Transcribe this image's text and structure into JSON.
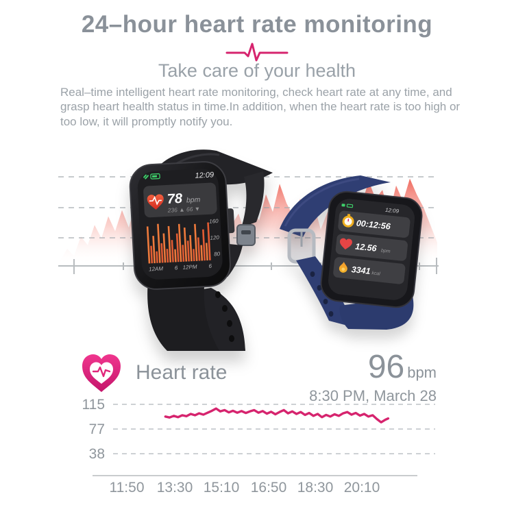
{
  "header": {
    "title": "24–hour heart rate monitoring",
    "subtitle": "Take care of your health",
    "description": "Real–time intelligent heart rate monitoring, check heart rate at any time, and grasp heart health status in time.In addition, when the heart rate is too high or too low, it will promptly notify you.",
    "accent_color": "#d6246e",
    "title_color": "#8a9199"
  },
  "icons": {
    "divider": "ecg-pulse-icon",
    "section": "heart-rate-badge-icon",
    "watch_status": [
      "steps-icon",
      "battery-icon"
    ],
    "watch_blue_rows": [
      "stopwatch-icon",
      "heart-icon",
      "flame-icon"
    ]
  },
  "scene": {
    "background_wave": {
      "color_top": "#ef6458",
      "heights": [
        0.05,
        0.18,
        0.1,
        0.32,
        0.22,
        0.45,
        0.3,
        0.55,
        0.38,
        0.62,
        0.42,
        0.7,
        0.52,
        0.78,
        0.58,
        0.48,
        0.66,
        0.4,
        0.82,
        0.55,
        0.95,
        0.68,
        0.85,
        0.6,
        0.72,
        0.45,
        0.58,
        0.35,
        0.65,
        0.5,
        0.8,
        0.6,
        0.92,
        0.7,
        0.55,
        0.75,
        0.48,
        0.68,
        0.4,
        0.6,
        0.52,
        0.78,
        0.62,
        0.88,
        0.7,
        0.95,
        0.75,
        0.85,
        0.58,
        0.9,
        0.72,
        0.98,
        0.8,
        0.65,
        0.45,
        0.25
      ]
    }
  },
  "watch_black": {
    "time": "12:09",
    "heart_rate": "78",
    "heart_rate_unit": "bpm",
    "hr_range": "236 ▲ 66 ▼",
    "chart": {
      "type": "bar",
      "ylabels": [
        "160",
        "120",
        "80"
      ],
      "xlabels": [
        "12AM",
        "6",
        "12PM",
        "6"
      ],
      "values": [
        150,
        100,
        125,
        85,
        155,
        105,
        130,
        90,
        148,
        112,
        88,
        128,
        152,
        98,
        142,
        108,
        122,
        86,
        150,
        115,
        95,
        135,
        100,
        152
      ]
    }
  },
  "watch_blue": {
    "time": "12:09",
    "rows": [
      {
        "icon": "stopwatch-icon",
        "value": "00:12:56",
        "unit": ""
      },
      {
        "icon": "heart-icon",
        "value": "12.56",
        "unit": "bpm"
      },
      {
        "icon": "flame-icon",
        "value": "3341",
        "unit": "kcal"
      }
    ]
  },
  "heart_rate_section": {
    "label": "Heart rate",
    "value": "96",
    "unit": "bpm",
    "timestamp": "8:30 PM, March 28"
  },
  "chart_data": {
    "type": "line",
    "title": "24-hour heart rate curve",
    "line_color": "#d6246e",
    "grid": "dashed horizontal",
    "y_ticks": [
      115,
      77,
      38
    ],
    "x_ticks": [
      "11:50",
      "13:30",
      "15:10",
      "16:50",
      "18:30",
      "20:10"
    ],
    "series": [
      {
        "name": "heart-rate-bpm",
        "x_hours": [
          13.2,
          13.35,
          13.5,
          13.65,
          13.8,
          13.95,
          14.1,
          14.25,
          14.4,
          14.55,
          14.7,
          14.85,
          15.0,
          15.15,
          15.3,
          15.45,
          15.6,
          15.75,
          15.9,
          16.05,
          16.2,
          16.35,
          16.5,
          16.65,
          16.8,
          16.95,
          17.1,
          17.25,
          17.4,
          17.55,
          17.7,
          17.85,
          18.0,
          18.15,
          18.3,
          18.45,
          18.6,
          18.75,
          18.9,
          19.05,
          19.2,
          19.35,
          19.5,
          19.65,
          19.8,
          19.95,
          20.1,
          20.25,
          20.4,
          20.55,
          20.7,
          20.85,
          21.0,
          21.1
        ],
        "values": [
          96,
          94.5,
          97,
          95,
          98,
          96.5,
          100,
          98,
          101,
          99,
          102,
          105,
          108.5,
          104,
          106,
          102.5,
          105,
          102,
          104.5,
          101.5,
          104,
          106,
          102,
          104.5,
          100.5,
          103.5,
          99.5,
          103,
          106,
          101,
          104,
          100,
          103,
          98.5,
          101.5,
          97,
          100,
          95,
          98.5,
          96,
          99.5,
          97,
          101,
          103,
          99,
          101.5,
          97.5,
          100,
          96,
          98,
          92,
          87,
          91,
          93
        ]
      }
    ]
  }
}
